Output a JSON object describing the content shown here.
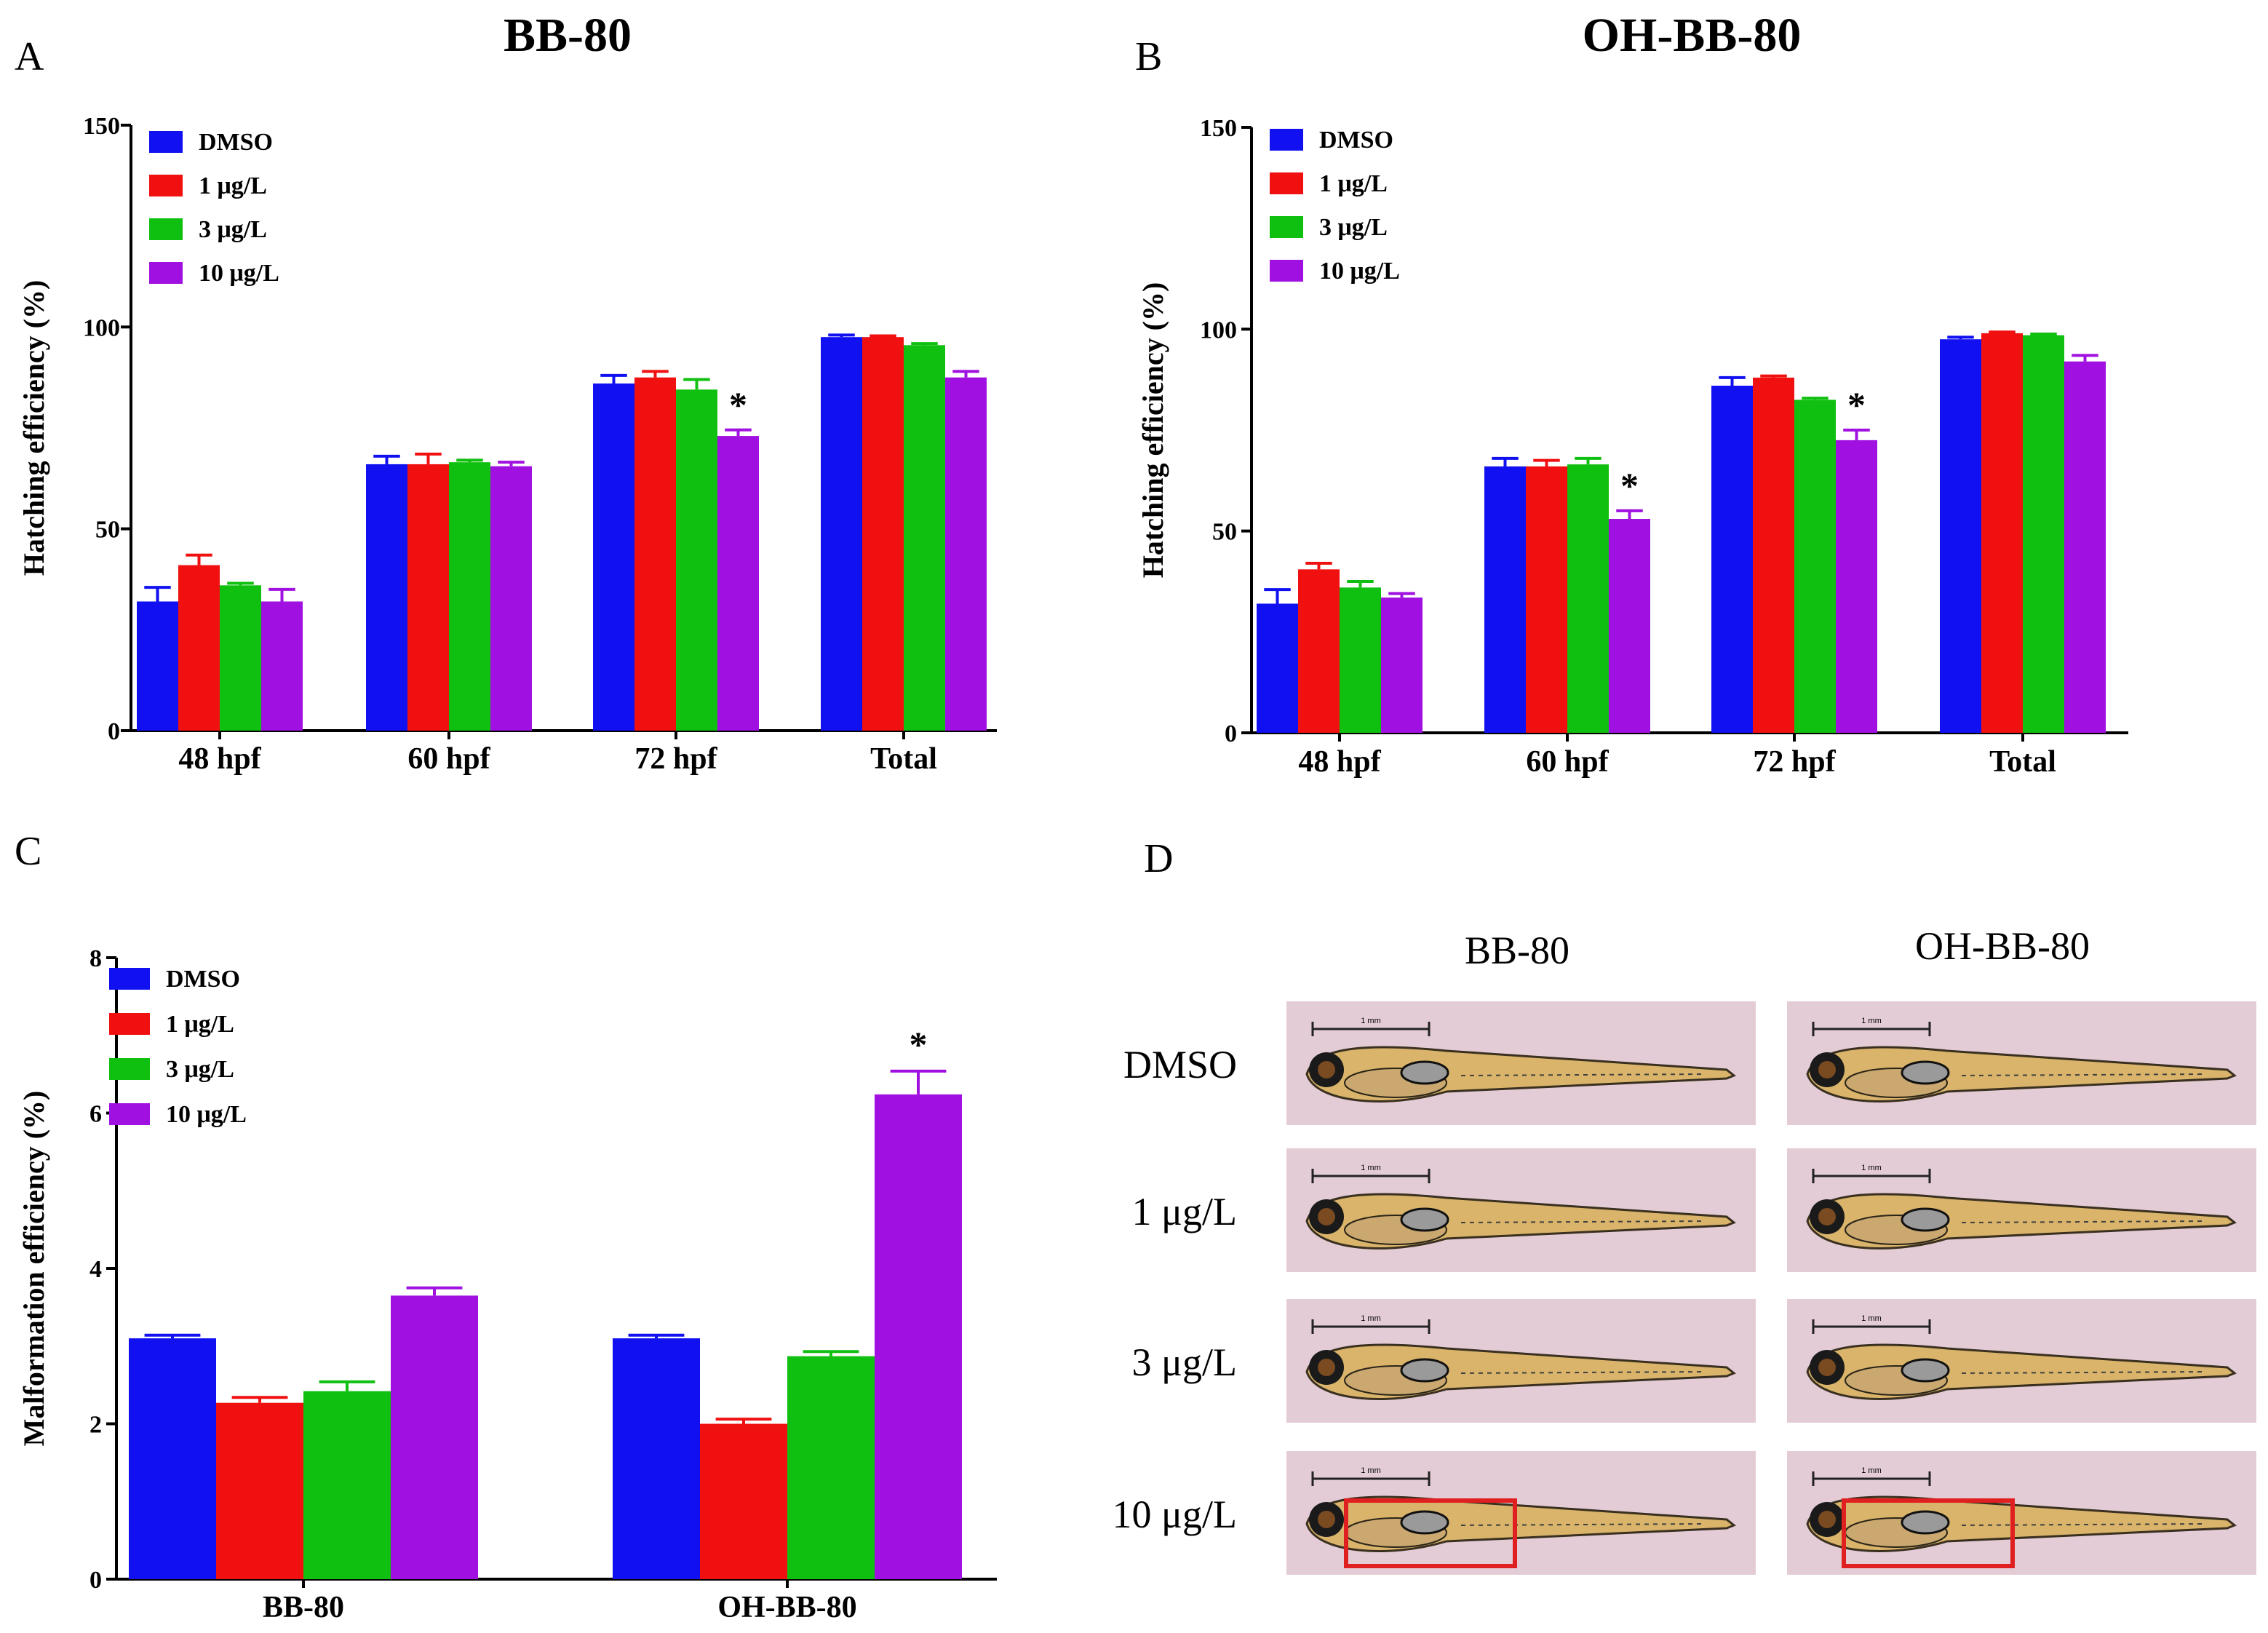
{
  "panels": {
    "A": "A",
    "B": "B",
    "C": "C",
    "D": "D"
  },
  "colors": {
    "DMSO": "#1010f0",
    "c1": "#f01010",
    "c3": "#10c010",
    "c10": "#a010e0",
    "highlight_box": "#e02020",
    "fish_bg": "#e4ccd6"
  },
  "chart_data": [
    {
      "id": "A",
      "type": "bar",
      "title": "BB-80",
      "ylabel": "Hatching efficiency (%)",
      "ylim": [
        0,
        150
      ],
      "yticks": [
        "0",
        "50",
        "100",
        "150"
      ],
      "categories": [
        "48 hpf",
        "60 hpf",
        "72 hpf",
        "Total"
      ],
      "series": [
        {
          "name": "DMSO",
          "values": [
            32,
            66,
            86,
            97.5
          ],
          "errors": [
            3.5,
            2,
            2,
            0.5
          ]
        },
        {
          "name": "1 μg/L",
          "values": [
            41,
            66,
            87.5,
            97.5
          ],
          "errors": [
            2.5,
            2.5,
            1.5,
            0.3
          ]
        },
        {
          "name": "3 μg/L",
          "values": [
            36,
            66.5,
            84.5,
            95.5
          ],
          "errors": [
            0.5,
            0.5,
            2.5,
            0.4
          ]
        },
        {
          "name": "10 μg/L",
          "values": [
            32,
            65.5,
            73,
            87.5
          ],
          "errors": [
            3,
            1,
            1.5,
            1.5
          ]
        }
      ],
      "annotations": [
        {
          "category": "72 hpf",
          "series": "10 μg/L",
          "text": "*"
        }
      ]
    },
    {
      "id": "B",
      "type": "bar",
      "title": "OH-BB-80",
      "ylabel": "Hatching efficiency (%)",
      "ylim": [
        0,
        150
      ],
      "yticks": [
        "0",
        "50",
        "100",
        "150"
      ],
      "categories": [
        "48 hpf",
        "60 hpf",
        "72 hpf",
        "Total"
      ],
      "series": [
        {
          "name": "DMSO",
          "values": [
            32,
            66,
            86,
            97.5
          ],
          "errors": [
            3.5,
            2,
            2,
            0.5
          ]
        },
        {
          "name": "1 μg/L",
          "values": [
            40.5,
            66,
            88,
            99
          ],
          "errors": [
            1.5,
            1.5,
            0.4,
            0.3
          ]
        },
        {
          "name": "3 μg/L",
          "values": [
            36,
            66.5,
            82.5,
            98.5
          ],
          "errors": [
            1.5,
            1.5,
            0.4,
            0.3
          ]
        },
        {
          "name": "10 μg/L",
          "values": [
            33.5,
            53,
            72.5,
            92
          ],
          "errors": [
            1,
            2,
            2.5,
            1.5
          ]
        }
      ],
      "annotations": [
        {
          "category": "60 hpf",
          "series": "10 μg/L",
          "text": "*"
        },
        {
          "category": "72 hpf",
          "series": "10 μg/L",
          "text": "*"
        }
      ]
    },
    {
      "id": "C",
      "type": "bar",
      "title": "",
      "ylabel": "Malformation efficiency (%)",
      "ylim": [
        0,
        8
      ],
      "yticks": [
        "0",
        "2",
        "4",
        "6",
        "8"
      ],
      "categories": [
        "BB-80",
        "OH-BB-80"
      ],
      "series": [
        {
          "name": "DMSO",
          "values": [
            3.1,
            3.1
          ],
          "errors": [
            0.04,
            0.04
          ]
        },
        {
          "name": "1 μg/L",
          "values": [
            2.27,
            2.0
          ],
          "errors": [
            0.07,
            0.06
          ]
        },
        {
          "name": "3 μg/L",
          "values": [
            2.42,
            2.87
          ],
          "errors": [
            0.12,
            0.06
          ]
        },
        {
          "name": "10 μg/L",
          "values": [
            3.65,
            6.24
          ],
          "errors": [
            0.1,
            0.3
          ]
        }
      ],
      "annotations": [
        {
          "category": "OH-BB-80",
          "series": "10 μg/L",
          "text": "*"
        }
      ]
    }
  ],
  "panel_d": {
    "columns": [
      "BB-80",
      "OH-BB-80"
    ],
    "rows": [
      "DMSO",
      "1 μg/L",
      "3 μg/L",
      "10 μg/L"
    ],
    "scale_label": "1 mm",
    "highlight_row": "10 μg/L"
  }
}
